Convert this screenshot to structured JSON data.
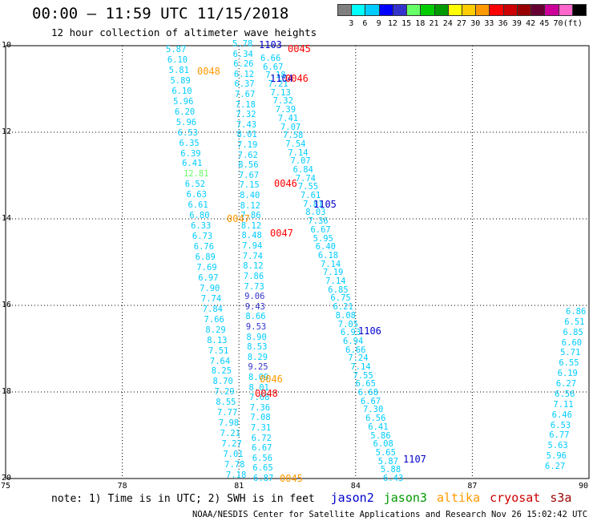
{
  "title": "00:00 – 11:59 UTC 11/15/2018",
  "subtitle": "12 hour collection of altimeter wave heights",
  "colorbar": {
    "colors": [
      "#7f7f7f",
      "#00ffff",
      "#00ccff",
      "#0000ff",
      "#3333cc",
      "#66ff66",
      "#00cc00",
      "#009900",
      "#ffff00",
      "#ffcc00",
      "#ff9900",
      "#ff0000",
      "#cc0000",
      "#990000",
      "#660033",
      "#cc0099",
      "#ff66cc",
      "#000000"
    ],
    "labels": [
      "3",
      "6",
      "9",
      "12",
      "15",
      "18",
      "21",
      "24",
      "27",
      "30",
      "33",
      "36",
      "39",
      "42",
      "45",
      "70",
      "(ft)"
    ]
  },
  "lat_labels": [
    "-10",
    "-12",
    "-14",
    "-16",
    "-18",
    "-20"
  ],
  "lon_labels": [
    "75",
    "78",
    "81",
    "84",
    "87",
    "90"
  ],
  "tracks": [
    {
      "name": "left",
      "points": [
        {
          "v": "5.87",
          "c": "#00ccff"
        },
        {
          "v": "6.10",
          "c": "#00ccff"
        },
        {
          "v": "5.81",
          "c": "#00ccff"
        },
        {
          "v": "5.89",
          "c": "#00ccff"
        },
        {
          "v": "6.10",
          "c": "#00ccff"
        },
        {
          "v": "5.96",
          "c": "#00ccff"
        },
        {
          "v": "6.20",
          "c": "#00ccff"
        },
        {
          "v": "5.96",
          "c": "#00ccff"
        },
        {
          "v": "6.53",
          "c": "#00ccff"
        },
        {
          "v": "6.35",
          "c": "#00ccff"
        },
        {
          "v": "6.39",
          "c": "#00ccff"
        },
        {
          "v": "6.41",
          "c": "#00ccff"
        },
        {
          "v": "12.81",
          "c": "#66ff66"
        },
        {
          "v": "6.52",
          "c": "#00ccff"
        },
        {
          "v": "6.63",
          "c": "#00ccff"
        },
        {
          "v": "6.61",
          "c": "#00ccff"
        },
        {
          "v": "6.80",
          "c": "#00ccff"
        },
        {
          "v": "6.33",
          "c": "#00ccff"
        },
        {
          "v": "6.73",
          "c": "#00ccff"
        },
        {
          "v": "6.76",
          "c": "#00ccff"
        },
        {
          "v": "6.89",
          "c": "#00ccff"
        },
        {
          "v": "7.69",
          "c": "#00ccff"
        },
        {
          "v": "6.97",
          "c": "#00ccff"
        },
        {
          "v": "7.90",
          "c": "#00ccff"
        },
        {
          "v": "7.74",
          "c": "#00ccff"
        },
        {
          "v": "7.84",
          "c": "#00ccff"
        },
        {
          "v": "7.66",
          "c": "#00ccff"
        },
        {
          "v": "8.29",
          "c": "#00ccff"
        },
        {
          "v": "8.13",
          "c": "#00ccff"
        },
        {
          "v": "7.51",
          "c": "#00ccff"
        },
        {
          "v": "7.64",
          "c": "#00ccff"
        },
        {
          "v": "8.25",
          "c": "#00ccff"
        },
        {
          "v": "8.70",
          "c": "#00ccff"
        },
        {
          "v": "7.29",
          "c": "#00ccff"
        },
        {
          "v": "8.55",
          "c": "#00ccff"
        },
        {
          "v": "7.77",
          "c": "#00ccff"
        },
        {
          "v": "7.98",
          "c": "#00ccff"
        },
        {
          "v": "7.21",
          "c": "#00ccff"
        },
        {
          "v": "7.27",
          "c": "#00ccff"
        },
        {
          "v": "7.01",
          "c": "#00ccff"
        },
        {
          "v": "7.78",
          "c": "#00ccff"
        },
        {
          "v": "7.18",
          "c": "#00ccff"
        }
      ]
    },
    {
      "name": "middle",
      "points": [
        {
          "v": "5.78",
          "c": "#00ccff"
        },
        {
          "v": "6.34",
          "c": "#00ccff"
        },
        {
          "v": "6.26",
          "c": "#00ccff"
        },
        {
          "v": "6.12",
          "c": "#00ccff"
        },
        {
          "v": "6.37",
          "c": "#00ccff"
        },
        {
          "v": "7.67",
          "c": "#00ccff"
        },
        {
          "v": "7.18",
          "c": "#00ccff"
        },
        {
          "v": "7.32",
          "c": "#00ccff"
        },
        {
          "v": "7.43",
          "c": "#00ccff"
        },
        {
          "v": "8.01",
          "c": "#00ccff"
        },
        {
          "v": "7.19",
          "c": "#00ccff"
        },
        {
          "v": "7.62",
          "c": "#00ccff"
        },
        {
          "v": "8.56",
          "c": "#00ccff"
        },
        {
          "v": "7.67",
          "c": "#00ccff"
        },
        {
          "v": "7.15",
          "c": "#00ccff"
        },
        {
          "v": "8.40",
          "c": "#00ccff"
        },
        {
          "v": "8.12",
          "c": "#00ccff"
        },
        {
          "v": "7.86",
          "c": "#00ccff"
        },
        {
          "v": "8.12",
          "c": "#00ccff"
        },
        {
          "v": "8.48",
          "c": "#00ccff"
        },
        {
          "v": "7.94",
          "c": "#00ccff"
        },
        {
          "v": "7.74",
          "c": "#00ccff"
        },
        {
          "v": "8.12",
          "c": "#00ccff"
        },
        {
          "v": "7.86",
          "c": "#00ccff"
        },
        {
          "v": "7.73",
          "c": "#00ccff"
        },
        {
          "v": "9.06",
          "c": "#3333cc"
        },
        {
          "v": "9.43",
          "c": "#3333cc"
        },
        {
          "v": "8.66",
          "c": "#00ccff"
        },
        {
          "v": "9.53",
          "c": "#3333cc"
        },
        {
          "v": "8.90",
          "c": "#00ccff"
        },
        {
          "v": "8.53",
          "c": "#00ccff"
        },
        {
          "v": "8.29",
          "c": "#00ccff"
        },
        {
          "v": "9.25",
          "c": "#3333cc"
        },
        {
          "v": "8.09",
          "c": "#00ccff"
        },
        {
          "v": "8.01",
          "c": "#00ccff"
        },
        {
          "v": "7.68",
          "c": "#00ccff"
        },
        {
          "v": "7.36",
          "c": "#00ccff"
        },
        {
          "v": "7.08",
          "c": "#00ccff"
        },
        {
          "v": "7.31",
          "c": "#00ccff"
        },
        {
          "v": "6.72",
          "c": "#00ccff"
        },
        {
          "v": "6.67",
          "c": "#00ccff"
        },
        {
          "v": "6.56",
          "c": "#00ccff"
        },
        {
          "v": "6.65",
          "c": "#00ccff"
        },
        {
          "v": "6.87",
          "c": "#00ccff"
        }
      ]
    },
    {
      "name": "right-descending",
      "points": [
        {
          "v": "6.66",
          "c": "#00ccff"
        },
        {
          "v": "6.67",
          "c": "#00ccff"
        },
        {
          "v": "7.18",
          "c": "#00ccff"
        },
        {
          "v": "7.21",
          "c": "#00ccff"
        },
        {
          "v": "7.13",
          "c": "#00ccff"
        },
        {
          "v": "7.32",
          "c": "#00ccff"
        },
        {
          "v": "7.39",
          "c": "#00ccff"
        },
        {
          "v": "7.41",
          "c": "#00ccff"
        },
        {
          "v": "7.07",
          "c": "#00ccff"
        },
        {
          "v": "7.58",
          "c": "#00ccff"
        },
        {
          "v": "7.54",
          "c": "#00ccff"
        },
        {
          "v": "7.14",
          "c": "#00ccff"
        },
        {
          "v": "7.07",
          "c": "#00ccff"
        },
        {
          "v": "6.84",
          "c": "#00ccff"
        },
        {
          "v": "7.74",
          "c": "#00ccff"
        },
        {
          "v": "7.55",
          "c": "#00ccff"
        },
        {
          "v": "7.61",
          "c": "#00ccff"
        },
        {
          "v": "7.81",
          "c": "#00ccff"
        },
        {
          "v": "8.03",
          "c": "#00ccff"
        },
        {
          "v": "7.36",
          "c": "#00ccff"
        },
        {
          "v": "6.67",
          "c": "#00ccff"
        },
        {
          "v": "5.95",
          "c": "#00ccff"
        },
        {
          "v": "6.40",
          "c": "#00ccff"
        },
        {
          "v": "6.18",
          "c": "#00ccff"
        },
        {
          "v": "7.14",
          "c": "#00ccff"
        },
        {
          "v": "7.19",
          "c": "#00ccff"
        },
        {
          "v": "7.14",
          "c": "#00ccff"
        },
        {
          "v": "6.85",
          "c": "#00ccff"
        },
        {
          "v": "6.75",
          "c": "#00ccff"
        },
        {
          "v": "6.21",
          "c": "#00ccff"
        },
        {
          "v": "8.08",
          "c": "#00ccff"
        },
        {
          "v": "7.05",
          "c": "#00ccff"
        },
        {
          "v": "6.93",
          "c": "#00ccff"
        },
        {
          "v": "6.94",
          "c": "#00ccff"
        },
        {
          "v": "6.66",
          "c": "#00ccff"
        },
        {
          "v": "7.24",
          "c": "#00ccff"
        },
        {
          "v": "7.14",
          "c": "#00ccff"
        },
        {
          "v": "7.55",
          "c": "#00ccff"
        },
        {
          "v": "6.65",
          "c": "#00ccff"
        },
        {
          "v": "6.68",
          "c": "#00ccff"
        },
        {
          "v": "6.67",
          "c": "#00ccff"
        },
        {
          "v": "7.30",
          "c": "#00ccff"
        },
        {
          "v": "6.56",
          "c": "#00ccff"
        },
        {
          "v": "6.41",
          "c": "#00ccff"
        },
        {
          "v": "5.86",
          "c": "#00ccff"
        },
        {
          "v": "6.08",
          "c": "#00ccff"
        },
        {
          "v": "5.65",
          "c": "#00ccff"
        },
        {
          "v": "5.87",
          "c": "#00ccff"
        },
        {
          "v": "5.88",
          "c": "#00ccff"
        },
        {
          "v": "6.43",
          "c": "#00ccff"
        }
      ]
    },
    {
      "name": "far-right",
      "points": [
        {
          "v": "6.86",
          "c": "#00ccff"
        },
        {
          "v": "6.51",
          "c": "#00ccff"
        },
        {
          "v": "6.85",
          "c": "#00ccff"
        },
        {
          "v": "6.60",
          "c": "#00ccff"
        },
        {
          "v": "5.71",
          "c": "#00ccff"
        },
        {
          "v": "6.55",
          "c": "#00ccff"
        },
        {
          "v": "6.19",
          "c": "#00ccff"
        },
        {
          "v": "6.27",
          "c": "#00ccff"
        },
        {
          "v": "6.56",
          "c": "#00ccff"
        },
        {
          "v": "7.11",
          "c": "#00ccff"
        },
        {
          "v": "6.46",
          "c": "#00ccff"
        },
        {
          "v": "6.53",
          "c": "#00ccff"
        },
        {
          "v": "6.77",
          "c": "#00ccff"
        },
        {
          "v": "5.63",
          "c": "#00ccff"
        },
        {
          "v": "5.96",
          "c": "#00ccff"
        },
        {
          "v": "6.27",
          "c": "#00ccff"
        }
      ]
    }
  ],
  "pass_labels": [
    {
      "text": "1103",
      "c": "#0000cc"
    },
    {
      "text": "0045",
      "c": "#ff0000"
    },
    {
      "text": "0048",
      "c": "#ff9900"
    },
    {
      "text": "1104",
      "c": "#0000cc"
    },
    {
      "text": "0046",
      "c": "#ff0000"
    },
    {
      "text": "0046",
      "c": "#ff0000"
    },
    {
      "text": "1105",
      "c": "#0000cc"
    },
    {
      "text": "0047",
      "c": "#ff9900"
    },
    {
      "text": "0047",
      "c": "#ff0000"
    },
    {
      "text": "1106",
      "c": "#0000cc"
    },
    {
      "text": "0046",
      "c": "#ff9900"
    },
    {
      "text": "0048",
      "c": "#ff0000"
    },
    {
      "text": "1107",
      "c": "#0000cc"
    },
    {
      "text": "0045",
      "c": "#ff9900"
    }
  ],
  "note": "note: 1) Time is in UTC; 2) SWH is in feet",
  "legend": [
    {
      "name": "jason2",
      "c": "#0000cc"
    },
    {
      "name": "jason3",
      "c": "#009900"
    },
    {
      "name": "altika",
      "c": "#ff9900"
    },
    {
      "name": "cryosat",
      "c": "#cc0000"
    },
    {
      "name": "s3a",
      "c": "#990000"
    }
  ],
  "footer": "NOAA/NESDIS Center for Satellite Applications and Research    Nov 26 15:02:42 UTC 2018"
}
